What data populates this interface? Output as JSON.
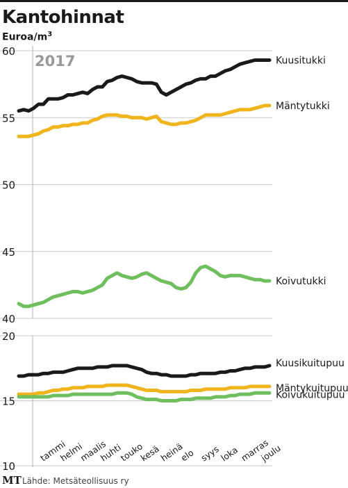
{
  "title": "Kantohinnat",
  "unit_base": "Euroa/m",
  "unit_sup": "3",
  "year": "2017",
  "footer_logo": "MT",
  "footer_source": "Lähde: Metsäteollisuus ry",
  "colors": {
    "black": "#1a1a1a",
    "yellow": "#f0b41c",
    "green": "#6fbf5e",
    "grid": "#c8c8c8"
  },
  "chart_data": [
    {
      "type": "line",
      "ylim": [
        40,
        60
      ],
      "yticks": [
        40,
        45,
        50,
        55,
        60
      ],
      "x": [
        0,
        1,
        2,
        3,
        4,
        5,
        6,
        7,
        8,
        9,
        10,
        11,
        12,
        13,
        14,
        15,
        16,
        17,
        18,
        19,
        20,
        21,
        22,
        23,
        24,
        25,
        26,
        27,
        28,
        29,
        30,
        31,
        32,
        33,
        34,
        35,
        36,
        37,
        38,
        39,
        40,
        41,
        42,
        43,
        44,
        45,
        46,
        47,
        48,
        49,
        50,
        51
      ],
      "series": [
        {
          "name": "Kuusitukki",
          "color": "#1a1a1a",
          "values": [
            55.5,
            55.6,
            55.5,
            55.7,
            56.0,
            56.0,
            56.4,
            56.4,
            56.4,
            56.5,
            56.7,
            56.7,
            56.8,
            56.9,
            56.8,
            57.1,
            57.3,
            57.3,
            57.7,
            57.8,
            58.0,
            58.1,
            58.0,
            57.9,
            57.7,
            57.6,
            57.6,
            57.6,
            57.5,
            56.9,
            56.7,
            56.9,
            57.1,
            57.3,
            57.5,
            57.6,
            57.8,
            57.9,
            57.9,
            58.1,
            58.1,
            58.3,
            58.5,
            58.6,
            58.8,
            59.0,
            59.1,
            59.2,
            59.3,
            59.3,
            59.3,
            59.3
          ]
        },
        {
          "name": "Mäntytukki",
          "color": "#f0b41c",
          "values": [
            53.6,
            53.6,
            53.6,
            53.7,
            53.8,
            54.0,
            54.1,
            54.3,
            54.3,
            54.4,
            54.4,
            54.5,
            54.5,
            54.6,
            54.6,
            54.8,
            54.9,
            55.1,
            55.2,
            55.2,
            55.2,
            55.1,
            55.1,
            55.0,
            55.0,
            55.0,
            54.9,
            55.0,
            55.1,
            54.7,
            54.6,
            54.5,
            54.5,
            54.6,
            54.6,
            54.7,
            54.8,
            55.0,
            55.2,
            55.2,
            55.2,
            55.2,
            55.3,
            55.4,
            55.5,
            55.6,
            55.6,
            55.6,
            55.7,
            55.8,
            55.9,
            55.9
          ]
        },
        {
          "name": "Koivutukki",
          "color": "#6fbf5e",
          "values": [
            41.1,
            40.9,
            40.9,
            41.0,
            41.1,
            41.2,
            41.4,
            41.6,
            41.7,
            41.8,
            41.9,
            42.0,
            42.0,
            41.9,
            42.0,
            42.1,
            42.3,
            42.5,
            43.0,
            43.2,
            43.4,
            43.2,
            43.1,
            43.0,
            43.1,
            43.3,
            43.4,
            43.2,
            43.0,
            42.8,
            42.7,
            42.6,
            42.3,
            42.2,
            42.3,
            42.7,
            43.4,
            43.8,
            43.9,
            43.7,
            43.5,
            43.2,
            43.1,
            43.2,
            43.2,
            43.2,
            43.1,
            43.0,
            42.9,
            42.9,
            42.8,
            42.8
          ]
        }
      ]
    },
    {
      "type": "line",
      "ylim": [
        10,
        20
      ],
      "yticks": [
        10,
        15,
        20
      ],
      "categories": [
        "tammi",
        "helmi",
        "maalis",
        "huhti",
        "touko",
        "kesä",
        "heinä",
        "elo",
        "syys",
        "loka",
        "marras",
        "joulu"
      ],
      "x": [
        0,
        1,
        2,
        3,
        4,
        5,
        6,
        7,
        8,
        9,
        10,
        11,
        12,
        13,
        14,
        15,
        16,
        17,
        18,
        19,
        20,
        21,
        22,
        23,
        24,
        25,
        26,
        27,
        28,
        29,
        30,
        31,
        32,
        33,
        34,
        35,
        36,
        37,
        38,
        39,
        40,
        41,
        42,
        43,
        44,
        45,
        46,
        47,
        48,
        49,
        50,
        51
      ],
      "series": [
        {
          "name": "Kuusikuitupuu",
          "color": "#1a1a1a",
          "values": [
            16.9,
            16.9,
            17.0,
            17.0,
            17.0,
            17.1,
            17.1,
            17.2,
            17.2,
            17.2,
            17.3,
            17.4,
            17.5,
            17.5,
            17.5,
            17.5,
            17.6,
            17.6,
            17.6,
            17.7,
            17.7,
            17.7,
            17.7,
            17.6,
            17.5,
            17.4,
            17.2,
            17.1,
            17.1,
            17.0,
            17.0,
            16.9,
            16.9,
            16.9,
            16.9,
            17.0,
            17.0,
            17.1,
            17.1,
            17.1,
            17.1,
            17.2,
            17.2,
            17.3,
            17.3,
            17.4,
            17.5,
            17.5,
            17.6,
            17.6,
            17.6,
            17.7
          ]
        },
        {
          "name": "Mäntykuitupuu",
          "color": "#f0b41c",
          "values": [
            15.5,
            15.5,
            15.5,
            15.5,
            15.6,
            15.6,
            15.7,
            15.8,
            15.8,
            15.9,
            15.9,
            16.0,
            16.0,
            16.0,
            16.1,
            16.1,
            16.1,
            16.1,
            16.2,
            16.2,
            16.2,
            16.2,
            16.2,
            16.1,
            16.0,
            15.9,
            15.8,
            15.8,
            15.8,
            15.7,
            15.7,
            15.7,
            15.7,
            15.7,
            15.7,
            15.8,
            15.8,
            15.8,
            15.9,
            15.9,
            15.9,
            15.9,
            15.9,
            16.0,
            16.0,
            16.0,
            16.0,
            16.1,
            16.1,
            16.1,
            16.1,
            16.1
          ]
        },
        {
          "name": "Koivukuitupuu",
          "color": "#6fbf5e",
          "values": [
            15.3,
            15.3,
            15.3,
            15.3,
            15.3,
            15.3,
            15.3,
            15.4,
            15.4,
            15.4,
            15.4,
            15.5,
            15.5,
            15.5,
            15.5,
            15.5,
            15.5,
            15.5,
            15.5,
            15.5,
            15.6,
            15.6,
            15.6,
            15.5,
            15.3,
            15.2,
            15.1,
            15.1,
            15.1,
            15.0,
            15.0,
            15.0,
            15.0,
            15.1,
            15.1,
            15.1,
            15.2,
            15.2,
            15.2,
            15.2,
            15.3,
            15.3,
            15.3,
            15.4,
            15.4,
            15.5,
            15.5,
            15.5,
            15.6,
            15.6,
            15.6,
            15.6
          ]
        }
      ]
    }
  ]
}
